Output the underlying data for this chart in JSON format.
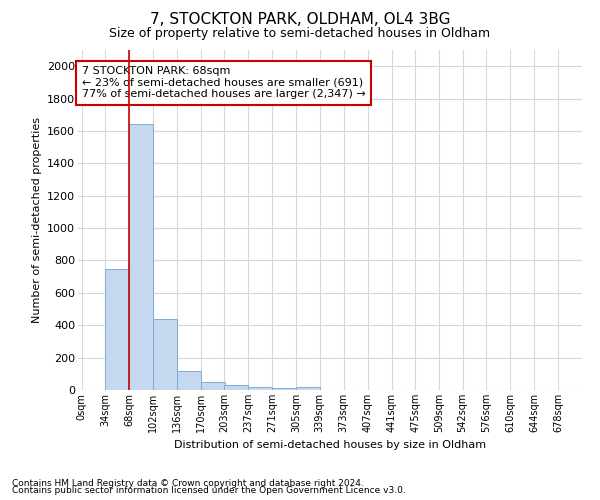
{
  "title": "7, STOCKTON PARK, OLDHAM, OL4 3BG",
  "subtitle": "Size of property relative to semi-detached houses in Oldham",
  "xlabel": "Distribution of semi-detached houses by size in Oldham",
  "ylabel": "Number of semi-detached properties",
  "footnote1": "Contains HM Land Registry data © Crown copyright and database right 2024.",
  "footnote2": "Contains public sector information licensed under the Open Government Licence v3.0.",
  "bin_labels": [
    "0sqm",
    "34sqm",
    "68sqm",
    "102sqm",
    "136sqm",
    "170sqm",
    "203sqm",
    "237sqm",
    "271sqm",
    "305sqm",
    "339sqm",
    "373sqm",
    "407sqm",
    "441sqm",
    "475sqm",
    "509sqm",
    "542sqm",
    "576sqm",
    "610sqm",
    "644sqm",
    "678sqm"
  ],
  "bin_edges": [
    0,
    34,
    68,
    102,
    136,
    170,
    203,
    237,
    271,
    305,
    339,
    373,
    407,
    441,
    475,
    509,
    542,
    576,
    610,
    644,
    678
  ],
  "values": [
    0,
    750,
    1640,
    440,
    115,
    50,
    30,
    20,
    10,
    20,
    0,
    0,
    0,
    0,
    0,
    0,
    0,
    0,
    0,
    0
  ],
  "bar_color": "#c5d8f0",
  "bar_edge_color": "#7bafd4",
  "red_line_x": 68,
  "annotation_title": "7 STOCKTON PARK: 68sqm",
  "annotation_line1": "← 23% of semi-detached houses are smaller (691)",
  "annotation_line2": "77% of semi-detached houses are larger (2,347) →",
  "annotation_box_color": "#cc0000",
  "ylim": [
    0,
    2100
  ],
  "yticks": [
    0,
    200,
    400,
    600,
    800,
    1000,
    1200,
    1400,
    1600,
    1800,
    2000
  ],
  "grid_color": "#d0d8e8",
  "background_color": "#ffffff"
}
